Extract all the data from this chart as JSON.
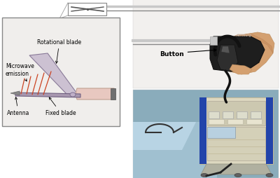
{
  "bg_color": "#ffffff",
  "label_microwave": "Microwave\nemission",
  "label_rotational": "Rotational blade",
  "label_antenna": "Antenna",
  "label_fixed": "Fixed blade",
  "label_button": "Button",
  "blade_purple": "#a898b0",
  "blade_light": "#c8bcd0",
  "handle_pink": "#e8c8c0",
  "handle_dark": "#b89090",
  "microwave_red": "#cc4422",
  "text_color": "#000000",
  "inset_bg": "#f0eeec",
  "top_right_bg": "#e8e4e0",
  "bot_right_bg": "#8aacbb",
  "device_beige": "#ddd8c0",
  "device_blue_stripe": "#2244aa",
  "device_gray": "#b8b8b8",
  "skin_color": "#d4a070",
  "gun_dark": "#1e1e1e",
  "gun_mid": "#2e2e2e",
  "gun_gray": "#888888",
  "gun_silver": "#c8c8c8",
  "cable_color": "#111111",
  "rod_color": "#c8c8c8",
  "rod_dark": "#888888"
}
